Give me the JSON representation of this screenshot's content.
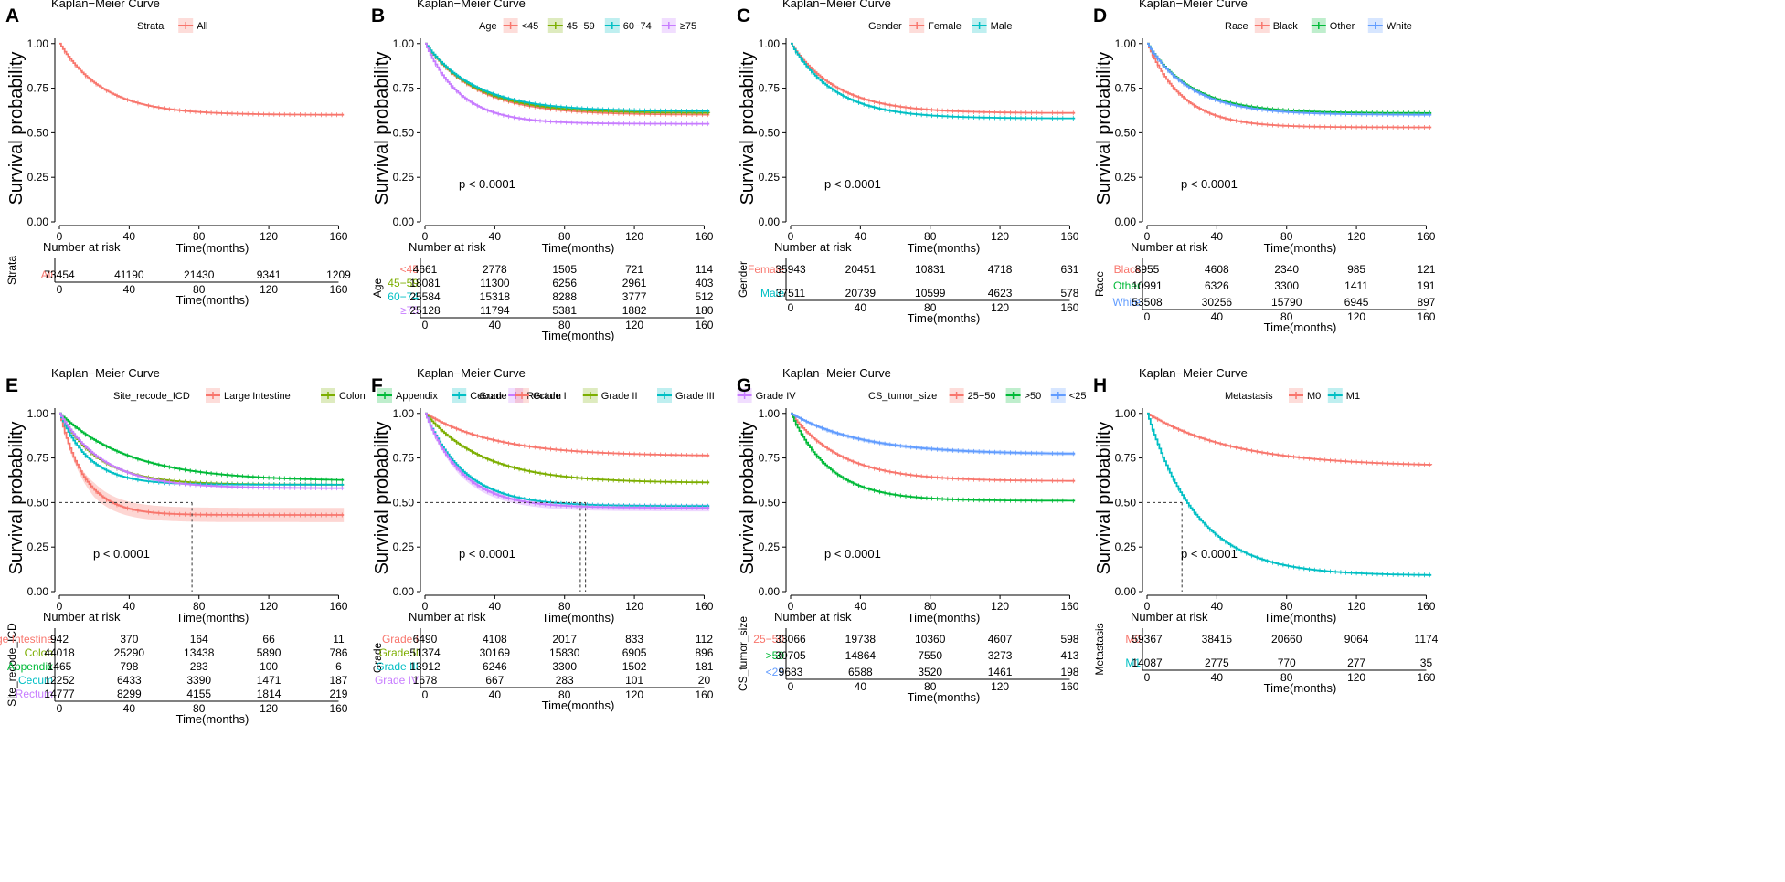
{
  "figure": {
    "colors": {
      "red": "#F8766D",
      "olive": "#7CAE00",
      "green": "#00BA38",
      "teal": "#00BFC4",
      "blue": "#619CFF",
      "purple": "#C77CFF",
      "axis": "#000000",
      "dash": "#333333"
    },
    "common": {
      "title": "Kaplan−Meier Curve",
      "ylabel": "Survival probability",
      "xlabel": "Time(months)",
      "risk_title": "Number at risk",
      "yticks": [
        "0.00",
        "0.25",
        "0.50",
        "0.75",
        "1.00"
      ],
      "xticks": [
        "0",
        "40",
        "80",
        "120",
        "160"
      ]
    }
  },
  "chart_data": [
    {
      "panel": "A",
      "type": "line",
      "title": "Kaplan−Meier Curve",
      "xlabel": "Time(months)",
      "ylabel": "Survival probability",
      "xlim": [
        0,
        165
      ],
      "ylim": [
        0,
        1.05
      ],
      "legend": {
        "title": "Strata",
        "entries": [
          "All"
        ]
      },
      "pvalue": "",
      "risk_label": "Strata",
      "series": [
        {
          "name": "All",
          "color": "red",
          "end": 0.6,
          "k": 0.04,
          "risk_label": "All",
          "risk": [
            "73454",
            "41190",
            "21430",
            "9341",
            "1209"
          ]
        }
      ]
    },
    {
      "panel": "B",
      "type": "line",
      "title": "Kaplan−Meier Curve",
      "xlabel": "Time(months)",
      "ylabel": "Survival probability",
      "xlim": [
        0,
        165
      ],
      "ylim": [
        0,
        1.05
      ],
      "legend": {
        "title": "Age",
        "entries": [
          "<45",
          "45−59",
          "60−74",
          "≥75"
        ]
      },
      "pvalue": "p < 0.0001",
      "risk_label": "Age",
      "series": [
        {
          "name": "<45",
          "color": "red",
          "end": 0.6,
          "k": 0.035,
          "risk_label": "<45",
          "risk": [
            "4661",
            "2778",
            "1505",
            "721",
            "114"
          ]
        },
        {
          "name": "45−59",
          "color": "olive",
          "end": 0.61,
          "k": 0.035,
          "risk_label": "45−59",
          "risk": [
            "18081",
            "11300",
            "6256",
            "2961",
            "403"
          ]
        },
        {
          "name": "60−74",
          "color": "teal",
          "end": 0.62,
          "k": 0.035,
          "risk_label": "60−74",
          "risk": [
            "25584",
            "15318",
            "8288",
            "3777",
            "512"
          ]
        },
        {
          "name": "≥75",
          "color": "purple",
          "end": 0.55,
          "k": 0.05,
          "risk_label": "≥75",
          "risk": [
            "25128",
            "11794",
            "5381",
            "1882",
            "180"
          ]
        }
      ]
    },
    {
      "panel": "C",
      "type": "line",
      "title": "Kaplan−Meier Curve",
      "xlabel": "Time(months)",
      "ylabel": "Survival probability",
      "xlim": [
        0,
        165
      ],
      "ylim": [
        0,
        1.05
      ],
      "legend": {
        "title": "Gender",
        "entries": [
          "Female",
          "Male"
        ]
      },
      "pvalue": "p < 0.0001",
      "risk_label": "Gender",
      "series": [
        {
          "name": "Female",
          "color": "red",
          "end": 0.61,
          "k": 0.038,
          "risk_label": "Female",
          "risk": [
            "35943",
            "20451",
            "10831",
            "4718",
            "631"
          ]
        },
        {
          "name": "Male",
          "color": "teal",
          "end": 0.58,
          "k": 0.04,
          "risk_label": "Male",
          "risk": [
            "37511",
            "20739",
            "10599",
            "4623",
            "578"
          ]
        }
      ]
    },
    {
      "panel": "D",
      "type": "line",
      "title": "Kaplan−Meier Curve",
      "xlabel": "Time(months)",
      "ylabel": "Survival probability",
      "xlim": [
        0,
        165
      ],
      "ylim": [
        0,
        1.05
      ],
      "legend": {
        "title": "Race",
        "entries": [
          "Black",
          "Other",
          "White"
        ]
      },
      "pvalue": "p < 0.0001",
      "risk_label": "Race",
      "series": [
        {
          "name": "Black",
          "color": "red",
          "end": 0.53,
          "k": 0.05,
          "risk_label": "Black",
          "risk": [
            "8955",
            "4608",
            "2340",
            "985",
            "121"
          ]
        },
        {
          "name": "Other",
          "color": "green",
          "end": 0.61,
          "k": 0.04,
          "risk_label": "Other",
          "risk": [
            "10991",
            "6326",
            "3300",
            "1411",
            "191"
          ]
        },
        {
          "name": "White",
          "color": "blue",
          "end": 0.6,
          "k": 0.04,
          "risk_label": "White",
          "risk": [
            "53508",
            "30256",
            "15790",
            "6945",
            "897"
          ]
        }
      ]
    },
    {
      "panel": "E",
      "type": "line",
      "title": "Kaplan−Meier Curve",
      "xlabel": "Time(months)",
      "ylabel": "Survival probability",
      "xlim": [
        0,
        165
      ],
      "ylim": [
        0,
        1.05
      ],
      "legend": {
        "title": "Site_recode_ICD",
        "entries": [
          "Large Intestine",
          "Colon",
          "Appendix",
          "Cecum",
          "Rectum"
        ]
      },
      "pvalue": "p < 0.0001",
      "risk_label": "Site_recode_ICD",
      "median_lines": [
        76
      ],
      "series": [
        {
          "name": "Large Intestine",
          "color": "red",
          "end": 0.43,
          "k": 0.07,
          "band": 0.04,
          "risk_label": "Large Intestine",
          "risk": [
            "942",
            "370",
            "164",
            "66",
            "11"
          ]
        },
        {
          "name": "Colon",
          "color": "olive",
          "end": 0.6,
          "k": 0.045,
          "risk_label": "Colon",
          "risk": [
            "44018",
            "25290",
            "13438",
            "5890",
            "786"
          ]
        },
        {
          "name": "Appendix",
          "color": "green",
          "end": 0.62,
          "k": 0.025,
          "risk_label": "Appendix",
          "risk": [
            "1465",
            "798",
            "283",
            "100",
            "6"
          ]
        },
        {
          "name": "Cecum",
          "color": "teal",
          "end": 0.6,
          "k": 0.06,
          "risk_label": "Cecum",
          "risk": [
            "12252",
            "6433",
            "3390",
            "1471",
            "187"
          ]
        },
        {
          "name": "Rectum",
          "color": "purple",
          "end": 0.58,
          "k": 0.04,
          "risk_label": "Rectum",
          "risk": [
            "14777",
            "8299",
            "4155",
            "1814",
            "219"
          ]
        }
      ]
    },
    {
      "panel": "F",
      "type": "line",
      "title": "Kaplan−Meier Curve",
      "xlabel": "Time(months)",
      "ylabel": "Survival probability",
      "xlim": [
        0,
        165
      ],
      "ylim": [
        0,
        1.05
      ],
      "legend": {
        "title": "Grade",
        "entries": [
          "Grade I",
          "Grade II",
          "Grade III",
          "Grade IV"
        ]
      },
      "pvalue": "p < 0.0001",
      "risk_label": "Grade",
      "median_lines": [
        89,
        92
      ],
      "series": [
        {
          "name": "Grade I",
          "color": "red",
          "end": 0.76,
          "k": 0.025,
          "risk_label": "Grade I",
          "risk": [
            "6490",
            "4108",
            "2017",
            "833",
            "112"
          ]
        },
        {
          "name": "Grade II",
          "color": "olive",
          "end": 0.61,
          "k": 0.03,
          "risk_label": "Grade II",
          "risk": [
            "51374",
            "30169",
            "15830",
            "6905",
            "896"
          ]
        },
        {
          "name": "Grade III",
          "color": "teal",
          "end": 0.48,
          "k": 0.045,
          "risk_label": "Grade III",
          "risk": [
            "13912",
            "6246",
            "3300",
            "1502",
            "181"
          ]
        },
        {
          "name": "Grade IV",
          "color": "purple",
          "end": 0.47,
          "k": 0.048,
          "band": 0.02,
          "risk_label": "Grade IV",
          "risk": [
            "1678",
            "667",
            "283",
            "101",
            "20"
          ]
        }
      ]
    },
    {
      "panel": "G",
      "type": "line",
      "title": "Kaplan−Meier Curve",
      "xlabel": "Time(months)",
      "ylabel": "Survival probability",
      "xlim": [
        0,
        165
      ],
      "ylim": [
        0,
        1.05
      ],
      "legend": {
        "title": "CS_tumor_size",
        "entries": [
          "25−50",
          ">50",
          "<25"
        ]
      },
      "pvalue": "p < 0.0001",
      "risk_label": "CS_tumor_size",
      "series": [
        {
          "name": "25−50",
          "color": "red",
          "end": 0.62,
          "k": 0.035,
          "risk_label": "25−50",
          "risk": [
            "33066",
            "19738",
            "10360",
            "4607",
            "598"
          ]
        },
        {
          "name": ">50",
          "color": "green",
          "end": 0.51,
          "k": 0.045,
          "risk_label": ">50",
          "risk": [
            "30705",
            "14864",
            "7550",
            "3273",
            "413"
          ]
        },
        {
          "name": "<25",
          "color": "blue",
          "end": 0.77,
          "k": 0.025,
          "band": 0.01,
          "risk_label": "<25",
          "risk": [
            "9683",
            "6588",
            "3520",
            "1461",
            "198"
          ]
        }
      ]
    },
    {
      "panel": "H",
      "type": "line",
      "title": "Kaplan−Meier Curve",
      "xlabel": "Time(months)",
      "ylabel": "Survival probability",
      "xlim": [
        0,
        165
      ],
      "ylim": [
        0,
        1.05
      ],
      "legend": {
        "title": "Metastasis",
        "entries": [
          "M0",
          "M1"
        ]
      },
      "pvalue": "p < 0.0001",
      "risk_label": "Metastasis",
      "median_lines": [
        20
      ],
      "series": [
        {
          "name": "M0",
          "color": "red",
          "end": 0.7,
          "k": 0.02,
          "risk_label": "M0",
          "risk": [
            "59367",
            "38415",
            "20660",
            "9064",
            "1174"
          ]
        },
        {
          "name": "M1",
          "color": "teal",
          "end": 0.09,
          "k": 0.035,
          "risk_label": "M1",
          "risk": [
            "14087",
            "2775",
            "770",
            "277",
            "35"
          ]
        }
      ]
    }
  ]
}
